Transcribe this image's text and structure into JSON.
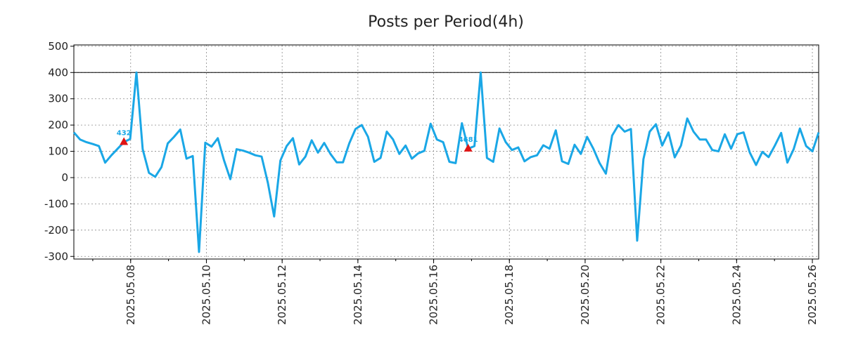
{
  "chart_data": {
    "type": "line",
    "title": "Posts per Period(4h)",
    "xlabel": "",
    "ylabel": "",
    "x_start": "2025.05.06",
    "x_end": "2025.05.26",
    "xlim": [
      "2025.05.06 12:00",
      "2025.05.26 04:00"
    ],
    "ylim": [
      -310,
      505
    ],
    "yticks": [
      -300,
      -200,
      -100,
      0,
      100,
      200,
      300,
      400,
      500
    ],
    "xticks": [
      "2025.05.08",
      "2025.05.10",
      "2025.05.12",
      "2025.05.14",
      "2025.05.16",
      "2025.05.18",
      "2025.05.20",
      "2025.05.22",
      "2025.05.24",
      "2025.05.26"
    ],
    "grid": true,
    "reference_line": 400,
    "color": "#1aa7e6",
    "marker_color": "#e01414",
    "peaks": [
      {
        "label": "432",
        "index": 8
      },
      {
        "label": "4681",
        "index": 63
      }
    ],
    "series": [
      {
        "values": [
          172,
          145,
          135,
          128,
          120,
          57,
          85,
          110,
          135,
          147,
          400,
          108,
          18,
          3,
          40,
          130,
          155,
          183,
          72,
          82,
          -283,
          133,
          118,
          150,
          65,
          -6,
          108,
          103,
          95,
          85,
          80,
          -20,
          -148,
          65,
          120,
          150,
          50,
          80,
          142,
          95,
          132,
          90,
          58,
          58,
          130,
          185,
          200,
          155,
          60,
          75,
          175,
          145,
          90,
          122,
          72,
          92,
          102,
          205,
          145,
          135,
          60,
          55,
          207,
          110,
          120,
          400,
          75,
          60,
          187,
          135,
          105,
          115,
          62,
          78,
          85,
          123,
          110,
          180,
          62,
          52,
          125,
          90,
          155,
          110,
          55,
          15,
          160,
          200,
          175,
          185,
          -240,
          70,
          175,
          203,
          122,
          172,
          77,
          122,
          225,
          175,
          145,
          145,
          105,
          100,
          165,
          110,
          165,
          172,
          95,
          48,
          98,
          78,
          122,
          170,
          57,
          108,
          187,
          120,
          100,
          172
        ]
      }
    ]
  }
}
